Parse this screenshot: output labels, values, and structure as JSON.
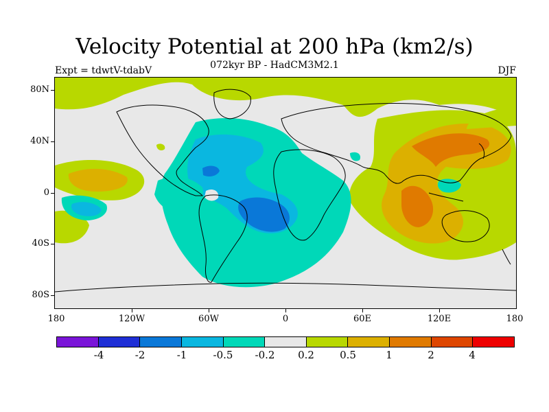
{
  "header": {
    "title": "Velocity Potential at 200 hPa (km2/s)",
    "subtitle": "072kyr BP - HadCM3M2.1",
    "experiment": "Expt = tdwtV-tdabV",
    "season": "DJF"
  },
  "axes": {
    "lat_labels": [
      "80N",
      "40N",
      "0",
      "40S",
      "80S"
    ],
    "lon_labels": [
      "180",
      "120W",
      "60W",
      "0",
      "60E",
      "120E",
      "180"
    ]
  },
  "colorbar": {
    "colors": [
      "#7a15d8",
      "#1f2fd6",
      "#0a78d8",
      "#0ab7e0",
      "#00d8b8",
      "#e8e8e8",
      "#b8d800",
      "#dcb000",
      "#e07a00",
      "#de4600",
      "#ee0000"
    ],
    "labels": [
      "-4",
      "-2",
      "-1",
      "-0.5",
      "-0.2",
      "0.2",
      "0.5",
      "1",
      "2",
      "4"
    ]
  },
  "map_colors": {
    "background": "#e8e8e8",
    "neg_weak": "#00d8b8",
    "neg_mid": "#0ab7e0",
    "neg_strong": "#0a78d8",
    "pos_weak": "#b8d800",
    "pos_mid": "#dcb000",
    "pos_strong": "#e07a00",
    "coast": "#000000"
  }
}
